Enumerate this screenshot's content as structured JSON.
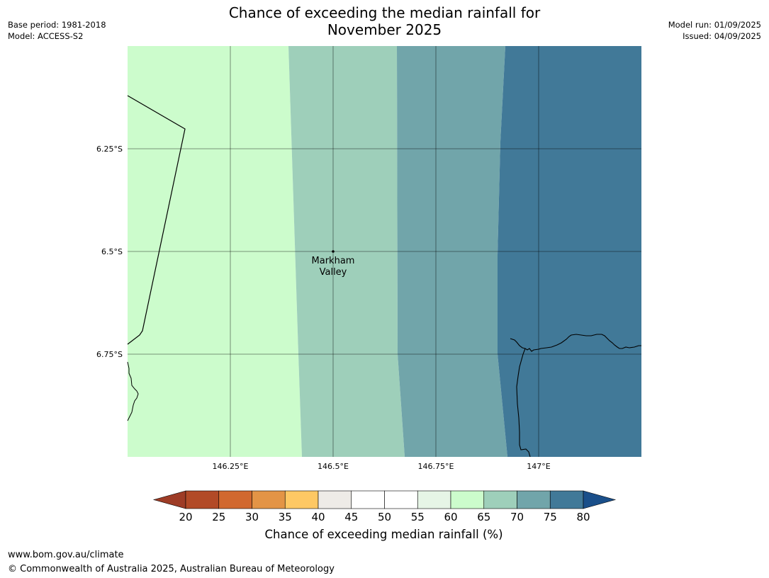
{
  "title_line1": "Chance of exceeding the median rainfall for",
  "title_line2": "November 2025",
  "meta_left": [
    "Base period: 1981-2018",
    "Model: ACCESS-S2"
  ],
  "meta_right": [
    "Model run: 01/09/2025",
    "Issued: 04/09/2025"
  ],
  "map": {
    "lon_ticks": [
      "146.25°E",
      "146.5°E",
      "146.75°E",
      "147°E"
    ],
    "lat_ticks": [
      "6.25°S",
      "6.5°S",
      "6.75°S"
    ],
    "location": {
      "label_line1": "Markham",
      "label_line2": "Valley",
      "lon": 146.5,
      "lat": -6.5
    },
    "bands": [
      {
        "range": "60-65",
        "color": "#ccfccc"
      },
      {
        "range": "65-70",
        "color": "#9ecfba"
      },
      {
        "range": "70-75",
        "color": "#71a5aa"
      },
      {
        "range": "75-80",
        "color": "#417998"
      }
    ]
  },
  "colorbar": {
    "title": "Chance of exceeding median rainfall (%)",
    "ticks": [
      "20",
      "25",
      "30",
      "35",
      "40",
      "45",
      "50",
      "55",
      "60",
      "65",
      "70",
      "75",
      "80"
    ],
    "below_color": "#9e3c26",
    "above_color": "#1a4f8a",
    "colors": [
      "#b24a27",
      "#d1682f",
      "#e39446",
      "#fec864",
      "#eeebe7",
      "#ffffff",
      "#ffffff",
      "#e6f5e6",
      "#ccfccc",
      "#9ecfba",
      "#71a5aa",
      "#417998"
    ]
  },
  "footer": [
    "www.bom.gov.au/climate",
    "© Commonwealth of Australia 2025, Australian Bureau of Meteorology"
  ]
}
